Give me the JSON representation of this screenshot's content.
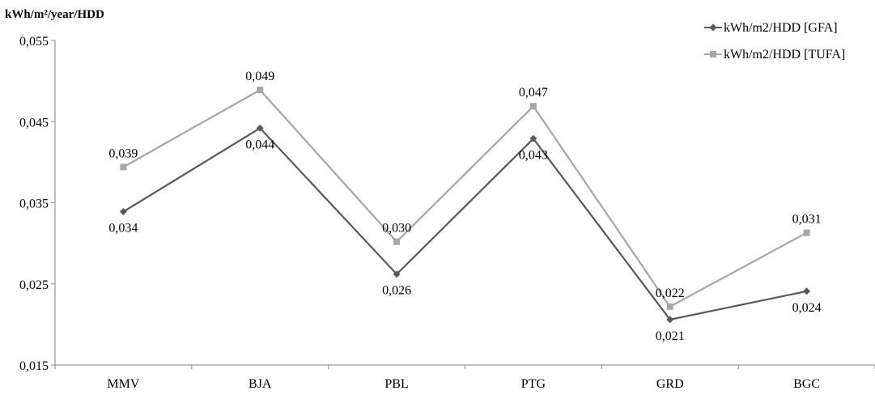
{
  "chart_data": {
    "type": "line",
    "title": "",
    "xlabel": "",
    "ylabel": "kWh/m²/year/HDD",
    "ylim": [
      0.015,
      0.055
    ],
    "yticks": [
      0.015,
      0.025,
      0.035,
      0.045,
      0.055
    ],
    "ytick_labels": [
      "0,015",
      "0,025",
      "0,035",
      "0,045",
      "0,055"
    ],
    "categories": [
      "MMV",
      "BJA",
      "PBL",
      "PTG",
      "GRD",
      "BGC"
    ],
    "grid": false,
    "legend_position": "top-right",
    "series": [
      {
        "name": "kWh/m2/HDD [GFA]",
        "color": "#595959",
        "marker": "diamond",
        "values": [
          0.0339,
          0.0442,
          0.0262,
          0.0429,
          0.0206,
          0.0241
        ],
        "labels": [
          "0,034",
          "0,044",
          "0,026",
          "0,043",
          "0,021",
          "0,024"
        ]
      },
      {
        "name": "kWh/m2/HDD [TUFA]",
        "color": "#a6a6a6",
        "marker": "square",
        "values": [
          0.0394,
          0.0489,
          0.0302,
          0.0469,
          0.0222,
          0.0313
        ],
        "labels": [
          "0,039",
          "0,049",
          "0,030",
          "0,047",
          "0,022",
          "0,031"
        ]
      }
    ]
  }
}
